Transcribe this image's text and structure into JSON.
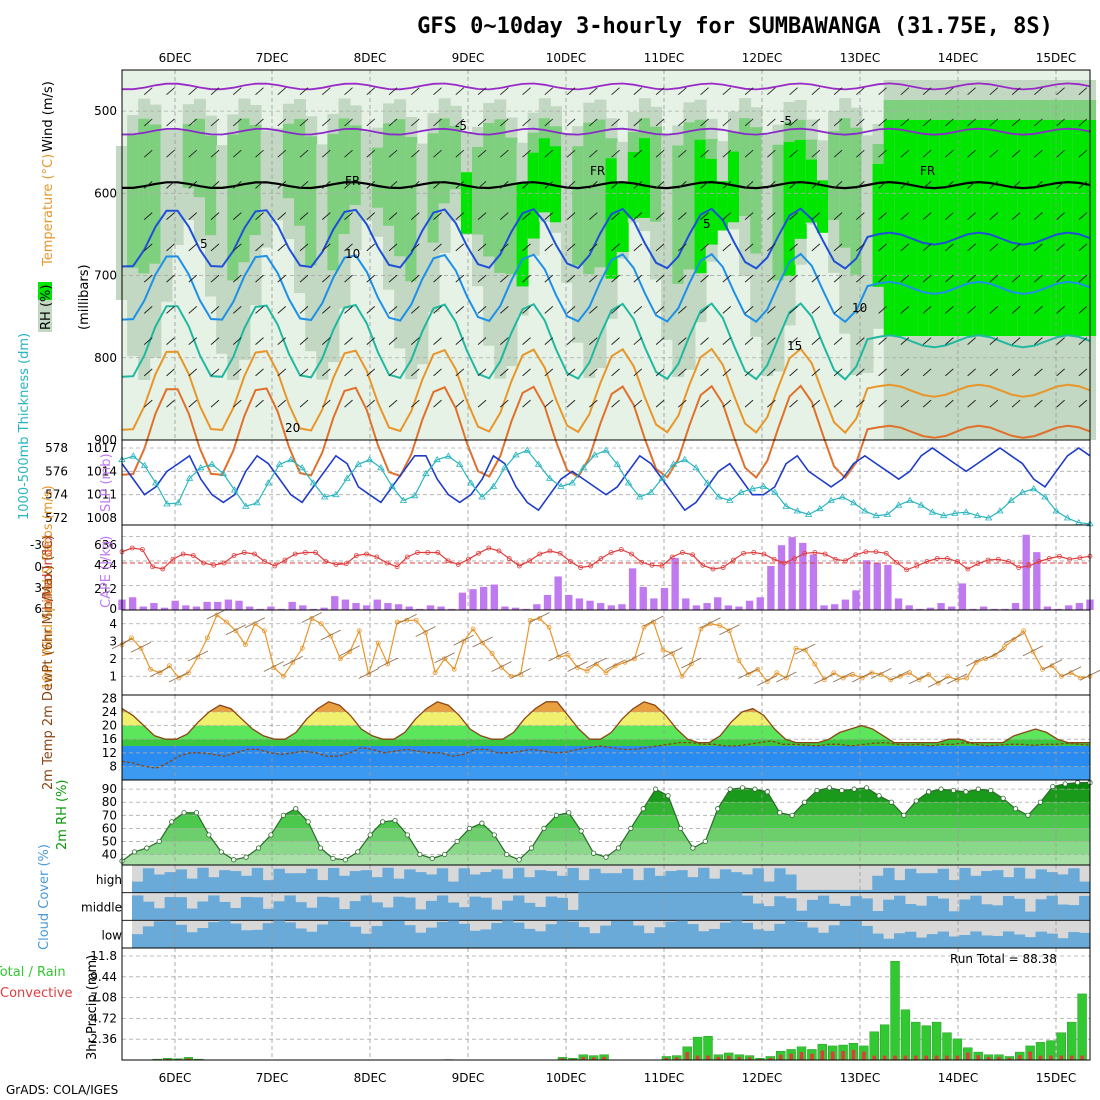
{
  "header": {
    "title": "GFS 0~10day 3-hourly for SUMBAWANGA (31.75E, 8S)",
    "credit": "GrADS: COLA/IGES"
  },
  "days": [
    "6DEC",
    "7DEC",
    "8DEC",
    "9DEC",
    "10DEC",
    "11DEC",
    "12DEC",
    "13DEC",
    "14DEC",
    "15DEC"
  ],
  "colors": {
    "rh_light": "#e6f2e6",
    "rh_mid": "#c2d8c2",
    "rh_dark": "#7ed07e",
    "rh_bright": "#00e600",
    "slp": "#1e3cc8",
    "thickness": "#28b4c0",
    "lifted": "#e03c3c",
    "cape": "#c07af0",
    "wind10m": "#e8962a",
    "temp_fill": "#5ce65c",
    "temp_high": "#f0f06e",
    "temp_peak": "#e8a040",
    "dewpt_fill": "#2a8cf0",
    "rh2m_fill": "#5cd65c",
    "rh2m_dark": "#0a8a0a",
    "cloud_fill": "#6aaad8",
    "cloud_bg": "#d8d8d8",
    "precip_total": "#32c832",
    "precip_conv": "#e03c3c"
  },
  "chart_data": [
    {
      "type": "heatmap",
      "panel": "upper-air",
      "ylabel": "(millibars)",
      "legend_labels": [
        "RH (%)",
        "Temperature (°C)",
        "Wind (m/s)"
      ],
      "yticks": [
        500,
        600,
        700,
        800,
        900
      ],
      "ylim": [
        900,
        450
      ],
      "isotherm_labels": [
        "-5",
        "-5",
        "FR",
        "FR",
        "FR",
        "5",
        "5",
        "10",
        "10",
        "15",
        "20"
      ]
    },
    {
      "type": "line",
      "panel": "thickness-slp",
      "ylabel_left": "1000-500mb Thickness (dm)",
      "ylabel_right": "SLP (mb)",
      "yticks_left": [
        572,
        574,
        576,
        578
      ],
      "yticks_right": [
        1008,
        1011,
        1014,
        1017
      ],
      "series": [
        {
          "name": "SLP (mb)",
          "values": [
            1015,
            1013,
            1011,
            1012,
            1014,
            1015,
            1016,
            1013,
            1011,
            1010,
            1011,
            1014,
            1016,
            1015,
            1013,
            1011,
            1010,
            1012,
            1014,
            1016,
            1015,
            1012,
            1011,
            1010,
            1012,
            1014,
            1016,
            1016,
            1013,
            1011,
            1010,
            1011,
            1013,
            1016,
            1015,
            1012,
            1010,
            1009,
            1011,
            1013,
            1014,
            1013,
            1012,
            1011,
            1012,
            1014,
            1016,
            1015,
            1013,
            1011,
            1009,
            1010,
            1012,
            1014,
            1015,
            1013,
            1011,
            1011,
            1012,
            1015,
            1016,
            1014,
            1013,
            1012,
            1013,
            1015,
            1016,
            1015,
            1014,
            1013,
            1014,
            1016,
            1017,
            1016,
            1015,
            1014,
            1015,
            1016,
            1017,
            1016,
            1015,
            1013,
            1012,
            1014,
            1016,
            1017,
            1016
          ]
        },
        {
          "name": "Thickness (dm)",
          "values": [
            577,
            577.3,
            576.5,
            575,
            573.2,
            573.3,
            575.4,
            576.3,
            576.6,
            575.8,
            574.4,
            573,
            573.3,
            575,
            576.6,
            577,
            576.3,
            575,
            573.8,
            574,
            575.4,
            576.6,
            577,
            576.3,
            574.7,
            573.5,
            573.9,
            575.8,
            577,
            577.3,
            576.6,
            575,
            573.8,
            574.7,
            576.3,
            577.4,
            577.8,
            576.6,
            575.4,
            574.7,
            575,
            576.3,
            577.4,
            577.8,
            576.6,
            575,
            573.8,
            574.2,
            575.4,
            576.6,
            577,
            576.3,
            575,
            573.8,
            573.5,
            574.2,
            574.5,
            574.7,
            574.2,
            573,
            572.6,
            572.3,
            572.8,
            573.5,
            573.8,
            573.3,
            572.6,
            572.2,
            572.3,
            573.1,
            573.5,
            573.1,
            572.5,
            572.2,
            572.4,
            572.5,
            572.2,
            572,
            572.6,
            573.5,
            574.2,
            574.5,
            573.8,
            572.6,
            572,
            571.6,
            571.5
          ]
        }
      ]
    },
    {
      "type": "bar",
      "panel": "cape-lifted-index",
      "ylabel_left": "Lifted Index",
      "ylabel_right": "CAPE (J/kg)",
      "yticks_left": [
        "-3",
        "0",
        "3",
        "6"
      ],
      "yticks_right": [
        "636",
        "424",
        "212",
        "0"
      ],
      "series": [
        {
          "name": "CAPE (J/kg)",
          "values": [
            90,
            110,
            30,
            60,
            20,
            80,
            40,
            30,
            70,
            70,
            90,
            80,
            30,
            10,
            30,
            10,
            70,
            40,
            10,
            20,
            120,
            90,
            60,
            40,
            90,
            60,
            50,
            30,
            10,
            40,
            30,
            10,
            150,
            180,
            200,
            220,
            30,
            20,
            10,
            50,
            130,
            290,
            130,
            100,
            80,
            60,
            40,
            50,
            360,
            200,
            100,
            190,
            450,
            100,
            40,
            60,
            110,
            40,
            30,
            80,
            110,
            380,
            560,
            630,
            580,
            480,
            40,
            50,
            90,
            170,
            430,
            410,
            390,
            100,
            40,
            10,
            20,
            60,
            30,
            230,
            10,
            30,
            10,
            10,
            60,
            650,
            500,
            30,
            10,
            40,
            60,
            90
          ]
        },
        {
          "name": "Lifted Index",
          "values": [
            -1.5,
            -2,
            -1.8,
            0.5,
            0.8,
            -0.5,
            -1.2,
            -1,
            0,
            0.3,
            0,
            -1,
            -1.4,
            -1.2,
            -0.2,
            0.4,
            -0.4,
            -1.2,
            -1.4,
            -1.4,
            -0.2,
            0.2,
            0.1,
            -1,
            -1.2,
            -0.8,
            0,
            0.5,
            -0.8,
            -1.4,
            -1.4,
            -1.4,
            -0.3,
            0.2,
            -0.5,
            -1.3,
            -2,
            -1.6,
            -0.6,
            0.4,
            -0.3,
            -1.2,
            -1.6,
            -1.3,
            -0.2,
            0.6,
            0.4,
            -0.6,
            -1.4,
            -1.8,
            -1.2,
            -0.1,
            0.3,
            0.4,
            -0.8,
            -1.4,
            -1.1,
            0.3,
            0.8,
            0.6,
            -0.4,
            -1.3,
            -1.4,
            -1.2,
            -0.5,
            0,
            -0.6,
            -1.3,
            -1.4,
            -1.2,
            -0.5,
            -0.3,
            -1.1,
            -1.5,
            -1.5,
            -1.3,
            -0.1,
            0.9,
            0.4,
            -0.2,
            -0.6,
            -0.6,
            -0.2,
            0.8,
            0.1,
            -0.4,
            -0.5,
            -0.2,
            0.6,
            0.4,
            -0.2,
            -0.6,
            -0.9,
            -0.5,
            -0.7,
            -0.9
          ]
        }
      ]
    },
    {
      "type": "line",
      "panel": "10m-wind",
      "ylabel": "10m Wind Speed & Barbs (m/s)",
      "yticks": [
        1,
        2,
        3,
        4
      ],
      "series": [
        {
          "name": "10m Wind Speed",
          "values": [
            2.8,
            3.2,
            2.6,
            1.4,
            1.2,
            1.6,
            0.9,
            1.2,
            2.1,
            3.2,
            4.5,
            4.1,
            3.6,
            2.8,
            4,
            3.6,
            1.5,
            1,
            1.8,
            2.6,
            4.3,
            4,
            3.3,
            2,
            2.4,
            3.6,
            1.1,
            2.9,
            1.7,
            4.1,
            4.2,
            4.2,
            3.5,
            1.2,
            2,
            1.4,
            3,
            3.7,
            2.9,
            2.3,
            1.5,
            1,
            1.1,
            4.2,
            4.3,
            3.8,
            2.1,
            2.2,
            1.5,
            1.3,
            1.7,
            1.2,
            1.6,
            1.8,
            2,
            3.8,
            4.1,
            2.5,
            2.3,
            1,
            1.7,
            3.7,
            4,
            3.9,
            3.6,
            1.9,
            1.1,
            1.4,
            0.7,
            1.2,
            0.9,
            2.6,
            2.5,
            1.7,
            0.8,
            1.2,
            0.9,
            1.1,
            0.9,
            1.2,
            1.1,
            0.8,
            1,
            1.2,
            0.8,
            1.1,
            0.6,
            1,
            0.8,
            0.9,
            1.8,
            2,
            2.2,
            2.7,
            3.1,
            3.6,
            2.4,
            1.4,
            1.6,
            1,
            1.2,
            0.9,
            1
          ]
        }
      ]
    },
    {
      "type": "area",
      "panel": "2m-temp",
      "ylabel": "2m Temp 2m DewPt (6hr Min/Max) (°C)",
      "yticks": [
        8,
        12,
        16,
        20,
        24,
        28
      ],
      "series": [
        {
          "name": "2m Temp",
          "values": [
            25,
            23,
            20,
            17,
            16,
            16,
            17.5,
            21,
            24,
            26,
            25,
            22,
            19,
            17,
            16,
            16,
            18,
            22,
            25,
            27,
            26,
            23,
            19,
            17,
            16,
            16,
            18,
            22,
            25,
            27,
            26,
            23,
            19,
            17,
            16,
            16,
            18,
            22,
            25,
            27,
            27,
            23,
            19,
            16,
            16,
            18,
            22,
            25,
            27,
            26,
            23,
            19,
            16,
            15,
            15,
            17,
            21,
            24,
            25,
            23,
            19,
            16,
            15,
            15,
            15,
            16,
            18,
            19,
            20,
            19,
            17,
            15,
            15,
            15,
            15,
            15,
            16,
            16,
            15,
            15,
            15,
            15,
            17,
            18,
            19,
            18,
            16,
            15,
            15,
            15
          ]
        },
        {
          "name": "2m DewPt",
          "values": [
            9.5,
            9,
            8,
            7.5,
            9,
            11,
            12,
            12,
            11.5,
            11,
            12,
            13,
            13,
            12,
            11.5,
            12,
            12.5,
            12,
            11,
            11,
            12,
            13.5,
            13,
            12,
            12.5,
            13,
            12.5,
            12,
            12,
            11,
            11.5,
            13,
            13,
            12,
            12,
            12.5,
            13,
            12.5,
            12,
            12.2,
            13,
            13.5,
            14,
            13.5,
            13,
            13,
            13.5,
            14,
            14.5,
            15,
            15,
            14.5,
            14.5,
            14,
            14,
            14.5,
            15,
            15.5,
            14.5,
            14.5,
            14.3,
            14,
            14.5,
            14.5,
            14,
            14.4,
            14.8,
            15,
            14.5,
            14.3,
            14.5,
            14,
            14.5,
            14.5,
            15,
            14.5,
            14,
            14.3,
            14.5,
            14.5,
            14.2,
            14.5,
            14.5,
            14.8,
            14.5,
            14.3
          ]
        }
      ]
    },
    {
      "type": "area",
      "panel": "2m-rh",
      "ylabel": "2m RH (%)",
      "yticks": [
        40,
        50,
        60,
        70,
        80,
        90
      ],
      "series": [
        {
          "name": "2m RH",
          "values": [
            35,
            42,
            45,
            50,
            65,
            72,
            72,
            55,
            42,
            36,
            38,
            45,
            55,
            70,
            75,
            65,
            45,
            37,
            36,
            42,
            55,
            65,
            66,
            55,
            40,
            37,
            40,
            50,
            60,
            64,
            55,
            40,
            36,
            45,
            60,
            70,
            72,
            58,
            41,
            38,
            45,
            60,
            75,
            90,
            85,
            60,
            45,
            50,
            75,
            90,
            91,
            90,
            88,
            72,
            70,
            80,
            89,
            91,
            89,
            90,
            91,
            85,
            80,
            70,
            81,
            88,
            90,
            89,
            88,
            90,
            89,
            83,
            75,
            70,
            80,
            92,
            94,
            95,
            95
          ]
        }
      ]
    },
    {
      "type": "bar",
      "panel": "cloud-cover",
      "ylabel": "Cloud Cover (%)",
      "categories": [
        "high",
        "middle",
        "low"
      ]
    },
    {
      "type": "bar",
      "panel": "precip",
      "ylabel": "3hr Precip (mm)",
      "legend_left": "Total / Rain",
      "legend_left_2": "Convective",
      "run_total_label": "Run Total = 88.38",
      "yticks": [
        "2.36",
        "4.72",
        "7.08",
        "9.44",
        "11.8"
      ],
      "ylim": [
        0,
        11.8
      ],
      "series": [
        {
          "name": "Total / Rain",
          "values": [
            0,
            0,
            0.1,
            0.2,
            0.15,
            0.3,
            0.1,
            0,
            0,
            0,
            0,
            0,
            0,
            0,
            0,
            0,
            0,
            0,
            0,
            0,
            0,
            0,
            0,
            0,
            0,
            0,
            0,
            0,
            0,
            0,
            0.05,
            0,
            0,
            0,
            0,
            0,
            0,
            0,
            0,
            0,
            0,
            0.3,
            0.2,
            0.6,
            0.5,
            0.6,
            0,
            0,
            0,
            0,
            0,
            0.4,
            0.5,
            1.5,
            2.6,
            2.7,
            0.6,
            0.8,
            0.6,
            0.5,
            0.2,
            0.4,
            1,
            1.2,
            1.5,
            1.2,
            1.8,
            1.6,
            1.7,
            1.9,
            1.6,
            3.2,
            4,
            11.2,
            5.7,
            4.3,
            3.9,
            4.3,
            3.1,
            2.4,
            1.4,
            0.9,
            0.6,
            0.6,
            0.4,
            0.9,
            1.6,
            2,
            2.2,
            3.1,
            4.3,
            7.5
          ]
        }
      ]
    }
  ]
}
